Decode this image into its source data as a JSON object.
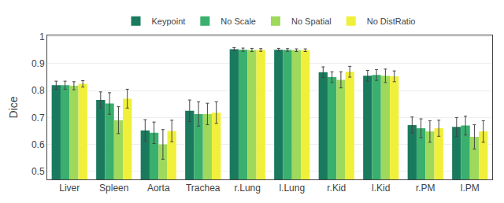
{
  "chart_data": {
    "type": "bar",
    "categories": [
      "Liver",
      "Spleen",
      "Aorta",
      "Trachea",
      "r.Lung",
      "l.Lung",
      "r.Kid",
      "l.Kid",
      "r.PM",
      "l.PM"
    ],
    "series": [
      {
        "name": "Keypoint",
        "color": "#1a7a5e",
        "values": [
          0.82,
          0.765,
          0.652,
          0.725,
          0.954,
          0.952,
          0.868,
          0.855,
          0.672,
          0.665
        ],
        "errors": [
          0.015,
          0.03,
          0.04,
          0.04,
          0.006,
          0.005,
          0.02,
          0.02,
          0.03,
          0.035
        ]
      },
      {
        "name": "No Scale",
        "color": "#3aaf6e",
        "values": [
          0.82,
          0.752,
          0.643,
          0.713,
          0.952,
          0.951,
          0.85,
          0.858,
          0.66,
          0.67
        ],
        "errors": [
          0.015,
          0.04,
          0.04,
          0.045,
          0.006,
          0.005,
          0.02,
          0.02,
          0.035,
          0.035
        ]
      },
      {
        "name": "No Spatial",
        "color": "#9ed95c",
        "values": [
          0.818,
          0.69,
          0.6,
          0.713,
          0.951,
          0.95,
          0.84,
          0.855,
          0.648,
          0.628
        ],
        "errors": [
          0.015,
          0.05,
          0.055,
          0.04,
          0.006,
          0.005,
          0.03,
          0.025,
          0.04,
          0.045
        ]
      },
      {
        "name": "No DistRatio",
        "color": "#f0f03a",
        "values": [
          0.825,
          0.77,
          0.65,
          0.718,
          0.951,
          0.95,
          0.87,
          0.853,
          0.66,
          0.648
        ],
        "errors": [
          0.012,
          0.035,
          0.04,
          0.04,
          0.005,
          0.005,
          0.02,
          0.02,
          0.03,
          0.04
        ]
      }
    ],
    "ylabel": "Dice",
    "ylim": [
      0.47,
      1.005
    ],
    "yticks": [
      0.5,
      0.6,
      0.7,
      0.8,
      0.9,
      1.0
    ],
    "grid": true,
    "legend": "top"
  }
}
